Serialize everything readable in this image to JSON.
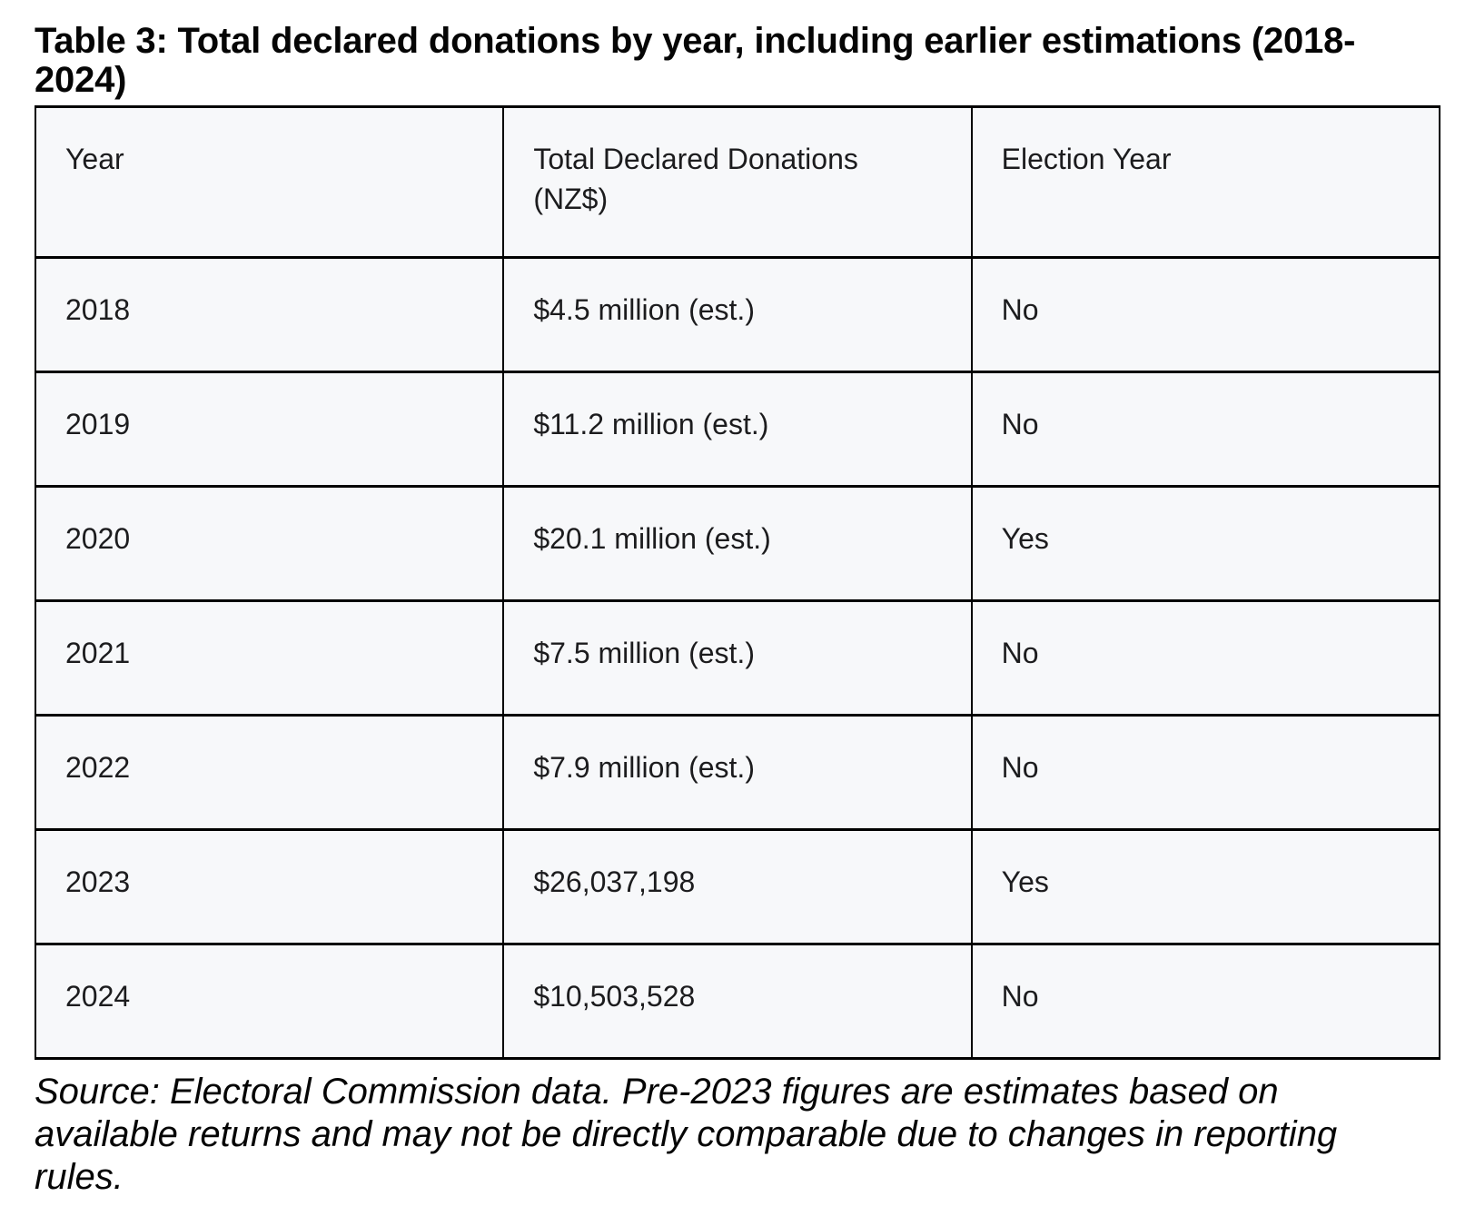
{
  "page": {
    "title": "Table 3: Total declared donations by year, including earlier estimations (2018-2024)",
    "source_note": "Source: Electoral Commission data. Pre-2023 figures are estimates based on available returns and may not be directly comparable due to changes in reporting rules."
  },
  "table": {
    "columns": [
      {
        "label": "Year",
        "sub": ""
      },
      {
        "label": "Total Declared Donations",
        "sub": "(NZ$)"
      },
      {
        "label": "Election Year",
        "sub": ""
      }
    ],
    "rows": [
      {
        "year": "2018",
        "donations": "$4.5 million (est.)",
        "election_year": "No"
      },
      {
        "year": "2019",
        "donations": "$11.2 million (est.)",
        "election_year": "No"
      },
      {
        "year": "2020",
        "donations": "$20.1 million (est.)",
        "election_year": "Yes"
      },
      {
        "year": "2021",
        "donations": "$7.5 million (est.)",
        "election_year": "No"
      },
      {
        "year": "2022",
        "donations": "$7.9 million (est.)",
        "election_year": "No"
      },
      {
        "year": "2023",
        "donations": "$26,037,198",
        "election_year": "Yes"
      },
      {
        "year": "2024",
        "donations": "$10,503,528",
        "election_year": "No"
      }
    ]
  },
  "colors": {
    "page_background": "#ffffff",
    "cell_background": "#f7f8fa",
    "border": "#000000",
    "title_text": "#050505",
    "cell_text": "#1c1c1e"
  }
}
